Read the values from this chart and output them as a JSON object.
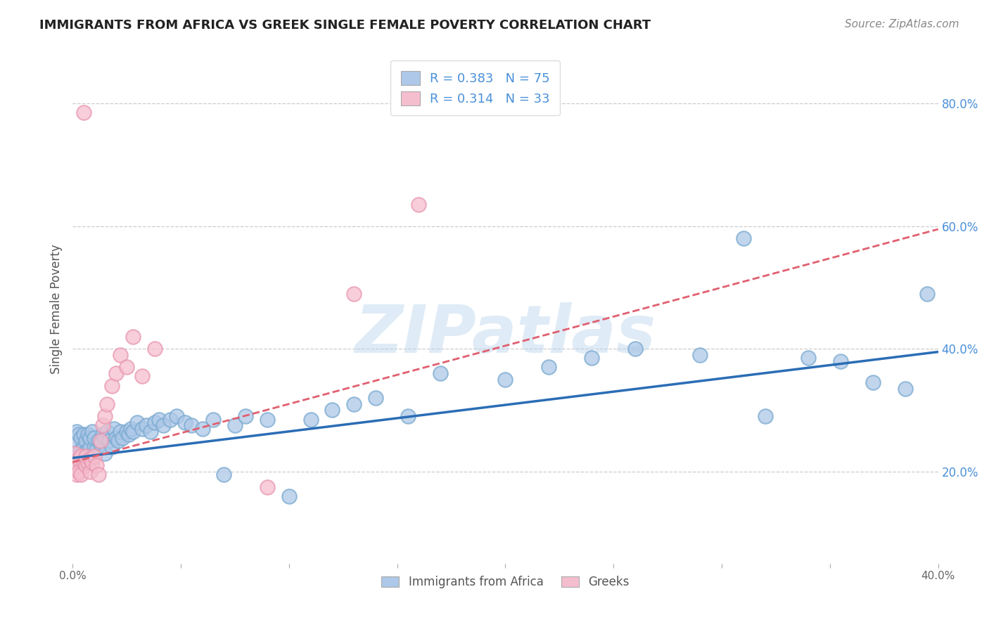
{
  "title": "IMMIGRANTS FROM AFRICA VS GREEK SINGLE FEMALE POVERTY CORRELATION CHART",
  "source": "Source: ZipAtlas.com",
  "ylabel": "Single Female Poverty",
  "xlim": [
    0.0,
    0.4
  ],
  "ylim": [
    0.05,
    0.88
  ],
  "ytick_labels_right": [
    "20.0%",
    "40.0%",
    "60.0%",
    "80.0%"
  ],
  "ytick_positions_right": [
    0.2,
    0.4,
    0.6,
    0.8
  ],
  "legend_label_1": "R = 0.383   N = 75",
  "legend_label_2": "R = 0.314   N = 33",
  "legend_color_1": "#adc8e8",
  "legend_color_2": "#f5bece",
  "watermark": "ZIPatlas",
  "blue_line_color": "#2b6db5",
  "pink_line_color": "#e06070",
  "dot_blue_color": "#adc8e8",
  "dot_pink_color": "#f5bece",
  "dot_blue_edge": "#7aaad0",
  "dot_pink_edge": "#e898b0",
  "background_color": "#ffffff",
  "grid_color": "#cccccc",
  "blue_line_x0": 0.0,
  "blue_line_y0": 0.222,
  "blue_line_x1": 0.4,
  "blue_line_y1": 0.395,
  "pink_line_x0": 0.0,
  "pink_line_y0": 0.215,
  "pink_line_x1": 0.4,
  "pink_line_y1": 0.595,
  "x_blue": [
    0.001,
    0.002,
    0.002,
    0.003,
    0.003,
    0.004,
    0.004,
    0.004,
    0.005,
    0.005,
    0.005,
    0.006,
    0.006,
    0.007,
    0.007,
    0.008,
    0.008,
    0.009,
    0.009,
    0.01,
    0.01,
    0.011,
    0.012,
    0.013,
    0.014,
    0.015,
    0.015,
    0.016,
    0.017,
    0.018,
    0.019,
    0.02,
    0.021,
    0.022,
    0.023,
    0.025,
    0.026,
    0.027,
    0.028,
    0.03,
    0.032,
    0.034,
    0.036,
    0.038,
    0.04,
    0.042,
    0.045,
    0.048,
    0.052,
    0.055,
    0.06,
    0.065,
    0.07,
    0.075,
    0.08,
    0.09,
    0.1,
    0.11,
    0.12,
    0.13,
    0.14,
    0.155,
    0.17,
    0.2,
    0.22,
    0.24,
    0.26,
    0.29,
    0.31,
    0.32,
    0.34,
    0.355,
    0.37,
    0.385,
    0.395
  ],
  "y_blue": [
    0.245,
    0.23,
    0.265,
    0.22,
    0.26,
    0.235,
    0.255,
    0.21,
    0.24,
    0.26,
    0.23,
    0.25,
    0.22,
    0.26,
    0.235,
    0.24,
    0.255,
    0.225,
    0.265,
    0.24,
    0.255,
    0.235,
    0.25,
    0.245,
    0.26,
    0.255,
    0.23,
    0.265,
    0.25,
    0.24,
    0.27,
    0.255,
    0.25,
    0.265,
    0.255,
    0.265,
    0.26,
    0.27,
    0.265,
    0.28,
    0.27,
    0.275,
    0.265,
    0.28,
    0.285,
    0.275,
    0.285,
    0.29,
    0.28,
    0.275,
    0.27,
    0.285,
    0.195,
    0.275,
    0.29,
    0.285,
    0.16,
    0.285,
    0.3,
    0.31,
    0.32,
    0.29,
    0.36,
    0.35,
    0.37,
    0.385,
    0.4,
    0.39,
    0.58,
    0.29,
    0.385,
    0.38,
    0.345,
    0.335,
    0.49
  ],
  "x_pink": [
    0.001,
    0.001,
    0.002,
    0.002,
    0.003,
    0.003,
    0.004,
    0.004,
    0.005,
    0.005,
    0.006,
    0.006,
    0.007,
    0.008,
    0.008,
    0.009,
    0.01,
    0.011,
    0.012,
    0.013,
    0.014,
    0.015,
    0.016,
    0.018,
    0.02,
    0.022,
    0.025,
    0.028,
    0.032,
    0.038,
    0.09,
    0.13,
    0.16
  ],
  "y_pink": [
    0.23,
    0.205,
    0.215,
    0.195,
    0.22,
    0.2,
    0.225,
    0.195,
    0.785,
    0.215,
    0.21,
    0.225,
    0.215,
    0.22,
    0.2,
    0.215,
    0.225,
    0.21,
    0.195,
    0.25,
    0.275,
    0.29,
    0.31,
    0.34,
    0.36,
    0.39,
    0.37,
    0.42,
    0.355,
    0.4,
    0.175,
    0.49,
    0.635
  ]
}
